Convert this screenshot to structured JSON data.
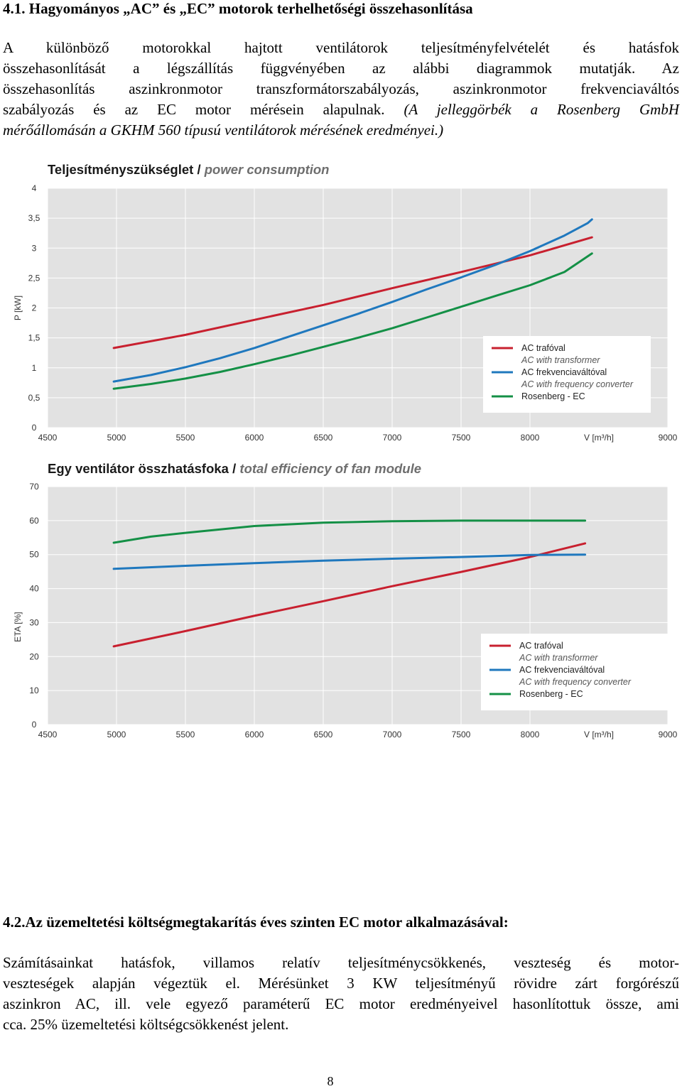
{
  "section1": {
    "heading": "4.1. Hagyományos „AC” és „EC” motorok terhelhetőségi összehasonlítása",
    "para_lines": [
      "A különböző motorokkal hajtott ventilátorok teljesítményfelvételét és hatásfok",
      "összehasonlítását a légszállítás függvényében az alábbi diagrammok mutatják. Az",
      "összehasonlítás aszinkronmotor transzformátorszabályozás, aszinkronmotor frekvenciaváltós"
    ],
    "para_line4_normal": "szabályozás és az EC motor mérésein alapulnak. ",
    "para_line4_italic": "(A jelleggörbék a Rosenberg GmbH",
    "para_line5_italic": "mérőállomásán a GKHM 560 típusú ventilátorok mérésének eredményei.)"
  },
  "chart_data": [
    {
      "type": "line",
      "title": "Teljesítményszükséglet",
      "subtitle": "power consumption",
      "ylabel": "P [kW]",
      "xlabel": "V [m³/h]",
      "xlim": [
        4500,
        9000
      ],
      "ylim": [
        0,
        4
      ],
      "x_ticks": [
        4500,
        5000,
        5500,
        6000,
        6500,
        7000,
        7500,
        8000,
        9000
      ],
      "x_tick_labels": [
        "4500",
        "5000",
        "5500",
        "6000",
        "6500",
        "7000",
        "7500",
        "8000",
        "9000"
      ],
      "y_ticks": [
        0,
        0.5,
        1,
        1.5,
        2,
        2.5,
        3,
        3.5,
        4
      ],
      "y_tick_labels": [
        "0",
        "0,5",
        "1",
        "1,5",
        "2",
        "2,5",
        "3",
        "3,5",
        "4"
      ],
      "grid": true,
      "legend": {
        "position": "right",
        "entries": [
          {
            "label": "AC trafóval",
            "sublabel": "AC with transformer",
            "color": "#c8202f"
          },
          {
            "label": "AC frekvenciaváltóval",
            "sublabel": "AC with frequency converter",
            "color": "#1f78be"
          },
          {
            "label": "Rosenberg - EC",
            "sublabel": "",
            "color": "#149046"
          }
        ]
      },
      "series": [
        {
          "name": "AC trafóval",
          "color": "#c8202f",
          "x": [
            4980,
            5500,
            6000,
            6500,
            7000,
            7500,
            8000,
            8450
          ],
          "y": [
            1.33,
            1.55,
            1.8,
            2.05,
            2.33,
            2.6,
            2.88,
            3.18
          ]
        },
        {
          "name": "AC frekvenciaváltóval",
          "color": "#1f78be",
          "x": [
            4980,
            5250,
            5500,
            5750,
            6000,
            6250,
            6500,
            6750,
            7000,
            7250,
            7500,
            7750,
            8000,
            8250,
            8420,
            8450
          ],
          "y": [
            0.77,
            0.88,
            1.01,
            1.16,
            1.33,
            1.52,
            1.71,
            1.9,
            2.1,
            2.31,
            2.51,
            2.72,
            2.95,
            3.21,
            3.42,
            3.48
          ]
        },
        {
          "name": "Rosenberg - EC",
          "color": "#149046",
          "x": [
            4980,
            5250,
            5500,
            5750,
            6000,
            6250,
            6500,
            6750,
            7000,
            7250,
            7500,
            7750,
            8000,
            8250,
            8450
          ],
          "y": [
            0.65,
            0.73,
            0.82,
            0.93,
            1.06,
            1.2,
            1.35,
            1.5,
            1.66,
            1.84,
            2.02,
            2.2,
            2.38,
            2.6,
            2.91
          ]
        }
      ]
    },
    {
      "type": "line",
      "title": "Egy ventilátor összhatásfoka",
      "subtitle": "total efficiency of fan module",
      "ylabel": "ETA [%]",
      "xlabel": "V [m³/h]",
      "xlim": [
        4500,
        9000
      ],
      "ylim": [
        0,
        70
      ],
      "x_ticks": [
        4500,
        5000,
        5500,
        6000,
        6500,
        7000,
        7500,
        8000,
        9000
      ],
      "x_tick_labels": [
        "4500",
        "5000",
        "5500",
        "6000",
        "6500",
        "7000",
        "7500",
        "8000",
        "9000"
      ],
      "y_ticks": [
        0,
        10,
        20,
        30,
        40,
        50,
        60,
        70
      ],
      "y_tick_labels": [
        "0",
        "10",
        "20",
        "30",
        "40",
        "50",
        "60",
        "70"
      ],
      "grid": true,
      "legend": {
        "position": "right",
        "entries": [
          {
            "label": "AC trafóval",
            "sublabel": "AC with transformer",
            "color": "#c8202f"
          },
          {
            "label": "AC frekvenciaváltóval",
            "sublabel": "AC with frequency converter",
            "color": "#1f78be"
          },
          {
            "label": "Rosenberg - EC",
            "sublabel": "",
            "color": "#149046"
          }
        ]
      },
      "series": [
        {
          "name": "AC trafóval",
          "color": "#c8202f",
          "x": [
            4980,
            5500,
            6000,
            6500,
            7000,
            7500,
            8000,
            8400
          ],
          "y": [
            23,
            27.5,
            32,
            36.3,
            40.7,
            44.9,
            49.3,
            53.3
          ]
        },
        {
          "name": "AC frekvenciaváltóval",
          "color": "#1f78be",
          "x": [
            4980,
            5500,
            6000,
            6500,
            7000,
            7500,
            8000,
            8400
          ],
          "y": [
            45.8,
            46.7,
            47.5,
            48.2,
            48.8,
            49.3,
            49.9,
            50.0
          ]
        },
        {
          "name": "Rosenberg - EC",
          "color": "#149046",
          "x": [
            4980,
            5250,
            5500,
            6000,
            6500,
            7000,
            7500,
            8000,
            8400
          ],
          "y": [
            53.5,
            55.3,
            56.4,
            58.4,
            59.4,
            59.8,
            60.0,
            60.0,
            60.0
          ]
        }
      ]
    }
  ],
  "section2": {
    "heading": "4.2.Az üzemeltetési költségmegtakarítás éves szinten EC motor alkalmazásával:",
    "para_lines": [
      "Számításainkat hatásfok, villamos relatív teljesítménycsökkenés, veszteség és motor-",
      "veszteségek alapján végeztük el. Mérésünket 3 KW teljesítményű rövidre zárt forgórészű",
      "aszinkron AC, ill. vele egyező paraméterű EC motor eredményeivel hasonlítottuk össze, ami",
      "cca. 25% üzemeltetési költségcsökkenést jelent."
    ]
  },
  "page_number": "8"
}
